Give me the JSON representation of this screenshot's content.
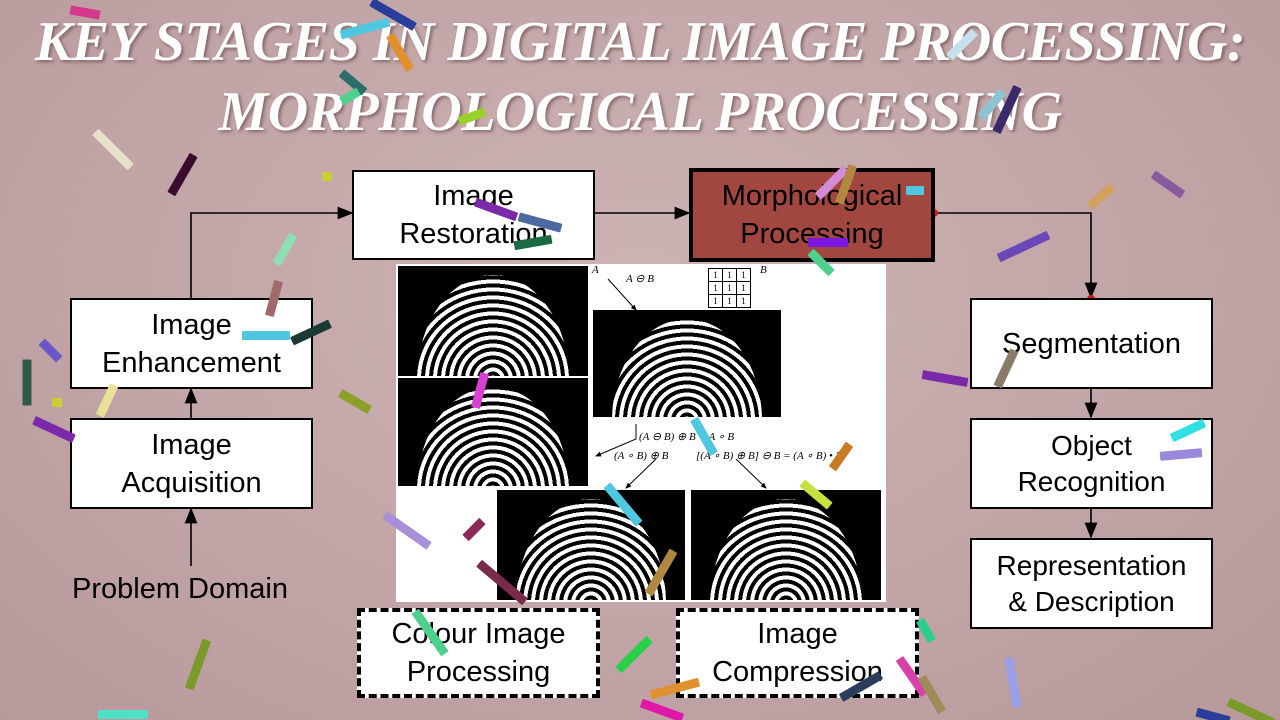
{
  "title": {
    "line1": "KEY STAGES IN DIGITAL IMAGE PROCESSING:",
    "line2": "MORPHOLOGICAL PROCESSING"
  },
  "stages": {
    "image_restoration": "Image Restoration",
    "morphological_processing": "Morphological Processing",
    "image_enhancement": "Image Enhancement",
    "image_acquisition": "Image Acquisition",
    "segmentation": "Segmentation",
    "object_recognition": "Object Recognition",
    "representation_description": "Representation & Description",
    "colour_image_processing": "Colour Image Processing",
    "image_compression": "Image Compression"
  },
  "problem_domain": "Problem Domain",
  "figure": {
    "label_a": "A",
    "label_b": "B",
    "f_erode": "A ⊖ B",
    "f_open": "(A ⊖ B) ⊕ B = A ∘ B",
    "f_open_dilate": "(A ∘ B) ⊕ B",
    "f_close": "[(A ∘ B) ⊕ B] ⊖ B = (A ∘ B) • B",
    "structuring_element": [
      "1",
      "1",
      "1",
      "1",
      "1",
      "1",
      "1",
      "1",
      "1"
    ]
  },
  "colors": {
    "background": "#c4a8aa",
    "morph_box": "#a2473f",
    "title_text": "#ffffff",
    "dot": "#d81818"
  }
}
